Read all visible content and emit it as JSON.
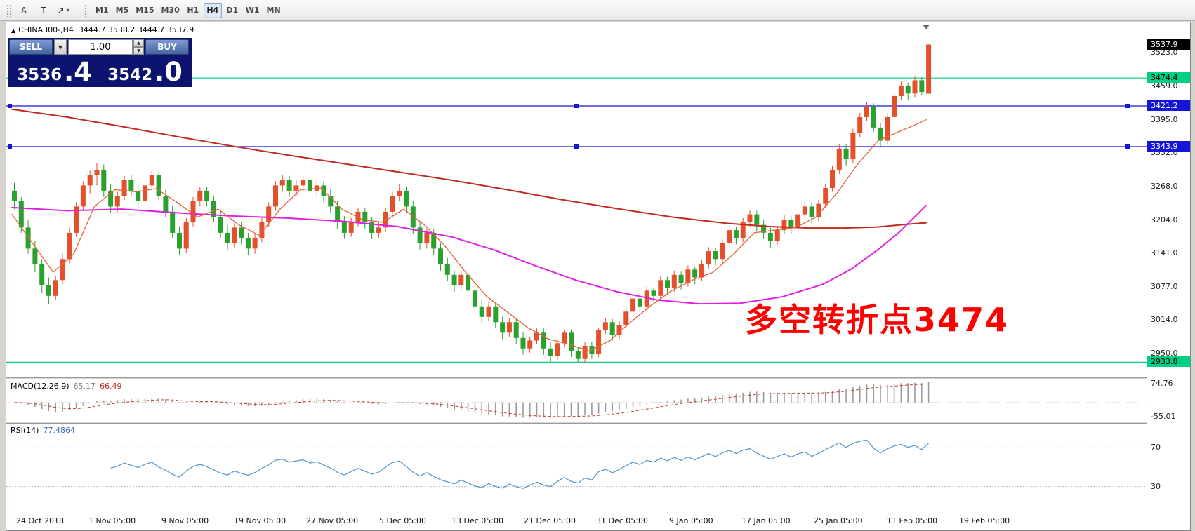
{
  "toolbar": {
    "tools": [
      {
        "glyph": "A",
        "name": "text-tool-button",
        "caret": false
      },
      {
        "glyph": "T",
        "name": "text-label-tool-button",
        "caret": false
      },
      {
        "glyph": "↗",
        "name": "arrow-styles-button",
        "caret": true
      }
    ],
    "timeframes": [
      {
        "label": "M1",
        "active": false
      },
      {
        "label": "M5",
        "active": false
      },
      {
        "label": "M15",
        "active": false
      },
      {
        "label": "M30",
        "active": false
      },
      {
        "label": "H1",
        "active": false
      },
      {
        "label": "H4",
        "active": true
      },
      {
        "label": "D1",
        "active": false
      },
      {
        "label": "W1",
        "active": false
      },
      {
        "label": "MN",
        "active": false
      }
    ]
  },
  "chart": {
    "title_symbol": "CHINA300-,H4",
    "title_ohlc": "3444.7 3538.2 3444.7 3537.9",
    "current_price": 3537.9,
    "current_price_label": "3537.9",
    "current_price_badge_bg": "#000000",
    "current_price_badge_fg": "#ffffff",
    "annotation": {
      "text": "多空转折点3474",
      "color": "#ff0000"
    },
    "trade_panel": {
      "sell_label": "SELL",
      "buy_label": "BUY",
      "volume": "1.00",
      "sell_price_main": "3536",
      "sell_price_big": ".4",
      "buy_price_main": "3542",
      "buy_price_big": ".0"
    }
  },
  "macd": {
    "name": "MACD(12,26,9)",
    "value1": "65.17",
    "value2": "66.49",
    "axis": [
      "74.76",
      "-55.01"
    ],
    "range": [
      -75,
      90
    ]
  },
  "rsi": {
    "name": "RSI(14)",
    "value": "77.4864",
    "axis": [
      "70",
      "30"
    ],
    "levels": [
      70,
      30
    ],
    "range": [
      5,
      95
    ]
  },
  "chart_data": {
    "type": "candlestick",
    "symbol": "CHINA300-",
    "timeframe": "H4",
    "title": "CHINA300-,H4",
    "price_range": [
      2905,
      3580
    ],
    "up_color": "#e4502c",
    "down_color": "#2aa12e",
    "y_ticks": [
      3523.0,
      3459.0,
      3395.0,
      3332.0,
      3268.0,
      3204.0,
      3141.0,
      3077.0,
      3014.0,
      2950.0
    ],
    "x_labels": [
      "24 Oct 2018",
      "1 Nov 05:00",
      "9 Nov 05:00",
      "19 Nov 05:00",
      "27 Nov 05:00",
      "5 Dec 05:00",
      "13 Dec 05:00",
      "21 Dec 05:00",
      "31 Dec 05:00",
      "9 Jan 05:00",
      "17 Jan 05:00",
      "25 Jan 05:00",
      "11 Feb 05:00",
      "19 Feb 05:00"
    ],
    "hlines": [
      {
        "price": 3474.4,
        "color": "#00d084",
        "handles": false,
        "label": "3474.4",
        "label_bg": "#00d084",
        "label_fg": "#000000"
      },
      {
        "price": 3421.2,
        "color": "#1515d8",
        "handles": true,
        "label": "3421.2",
        "label_bg": "#1515d8",
        "label_fg": "#ffffff"
      },
      {
        "price": 3343.9,
        "color": "#1515d8",
        "handles": true,
        "label": "3343.9",
        "label_bg": "#1515d8",
        "label_fg": "#ffffff"
      },
      {
        "price": 2933.8,
        "color": "#00d084",
        "handles": false,
        "label": "2933.8",
        "label_bg": "#00d084",
        "label_fg": "#000000"
      }
    ],
    "moving_averages": [
      {
        "name": "slow-ma",
        "color": "#c22a20",
        "width": 2,
        "points": [
          [
            0,
            3415
          ],
          [
            8,
            3400
          ],
          [
            16,
            3382
          ],
          [
            24,
            3363
          ],
          [
            32,
            3345
          ],
          [
            40,
            3328
          ],
          [
            48,
            3312
          ],
          [
            56,
            3296
          ],
          [
            64,
            3280
          ],
          [
            72,
            3262
          ],
          [
            80,
            3243
          ],
          [
            88,
            3226
          ],
          [
            96,
            3210
          ],
          [
            104,
            3198
          ],
          [
            110,
            3192
          ],
          [
            116,
            3189
          ],
          [
            121,
            3189
          ],
          [
            126,
            3191
          ],
          [
            130,
            3196
          ],
          [
            133,
            3199
          ]
        ]
      },
      {
        "name": "medium-ma",
        "color": "#e020e0",
        "width": 2,
        "points": [
          [
            0,
            3228
          ],
          [
            8,
            3222
          ],
          [
            16,
            3225
          ],
          [
            24,
            3218
          ],
          [
            32,
            3212
          ],
          [
            40,
            3208
          ],
          [
            48,
            3202
          ],
          [
            56,
            3192
          ],
          [
            64,
            3172
          ],
          [
            70,
            3148
          ],
          [
            76,
            3118
          ],
          [
            82,
            3090
          ],
          [
            88,
            3068
          ],
          [
            94,
            3052
          ],
          [
            100,
            3045
          ],
          [
            106,
            3046
          ],
          [
            112,
            3058
          ],
          [
            118,
            3082
          ],
          [
            122,
            3110
          ],
          [
            126,
            3148
          ],
          [
            129,
            3180
          ],
          [
            131,
            3206
          ],
          [
            133,
            3232
          ]
        ]
      },
      {
        "name": "fast-ma",
        "color": "#e8603c",
        "width": 1.3,
        "points": [
          [
            0,
            3215
          ],
          [
            3,
            3160
          ],
          [
            6,
            3105
          ],
          [
            9,
            3140
          ],
          [
            12,
            3230
          ],
          [
            15,
            3262
          ],
          [
            18,
            3258
          ],
          [
            21,
            3264
          ],
          [
            24,
            3238
          ],
          [
            27,
            3210
          ],
          [
            30,
            3225
          ],
          [
            33,
            3195
          ],
          [
            36,
            3175
          ],
          [
            39,
            3225
          ],
          [
            42,
            3262
          ],
          [
            45,
            3265
          ],
          [
            48,
            3225
          ],
          [
            51,
            3205
          ],
          [
            54,
            3200
          ],
          [
            57,
            3225
          ],
          [
            60,
            3195
          ],
          [
            63,
            3155
          ],
          [
            66,
            3105
          ],
          [
            69,
            3060
          ],
          [
            72,
            3030
          ],
          [
            75,
            3000
          ],
          [
            78,
            2978
          ],
          [
            81,
            2968
          ],
          [
            84,
            2955
          ],
          [
            87,
            2975
          ],
          [
            90,
            3010
          ],
          [
            93,
            3042
          ],
          [
            96,
            3070
          ],
          [
            99,
            3090
          ],
          [
            102,
            3105
          ],
          [
            105,
            3140
          ],
          [
            108,
            3180
          ],
          [
            111,
            3185
          ],
          [
            114,
            3190
          ],
          [
            117,
            3210
          ],
          [
            120,
            3255
          ],
          [
            123,
            3310
          ],
          [
            126,
            3355
          ],
          [
            129,
            3372
          ],
          [
            131,
            3383
          ],
          [
            133,
            3395
          ]
        ]
      }
    ],
    "ohlc": [
      [
        3260,
        3275,
        3225,
        3240
      ],
      [
        3240,
        3248,
        3180,
        3190
      ],
      [
        3190,
        3205,
        3140,
        3150
      ],
      [
        3150,
        3165,
        3105,
        3120
      ],
      [
        3120,
        3130,
        3065,
        3080
      ],
      [
        3080,
        3095,
        3045,
        3060
      ],
      [
        3060,
        3098,
        3052,
        3090
      ],
      [
        3090,
        3140,
        3082,
        3130
      ],
      [
        3130,
        3190,
        3122,
        3180
      ],
      [
        3180,
        3238,
        3172,
        3230
      ],
      [
        3230,
        3278,
        3222,
        3270
      ],
      [
        3270,
        3298,
        3255,
        3290
      ],
      [
        3290,
        3312,
        3270,
        3300
      ],
      [
        3300,
        3310,
        3248,
        3260
      ],
      [
        3260,
        3272,
        3218,
        3230
      ],
      [
        3230,
        3258,
        3220,
        3250
      ],
      [
        3250,
        3288,
        3242,
        3280
      ],
      [
        3280,
        3290,
        3250,
        3260
      ],
      [
        3260,
        3270,
        3228,
        3240
      ],
      [
        3240,
        3278,
        3232,
        3270
      ],
      [
        3270,
        3298,
        3260,
        3290
      ],
      [
        3290,
        3295,
        3242,
        3250
      ],
      [
        3250,
        3262,
        3210,
        3220
      ],
      [
        3220,
        3232,
        3170,
        3180
      ],
      [
        3180,
        3192,
        3138,
        3150
      ],
      [
        3150,
        3208,
        3142,
        3200
      ],
      [
        3200,
        3248,
        3192,
        3240
      ],
      [
        3240,
        3268,
        3230,
        3260
      ],
      [
        3260,
        3268,
        3230,
        3240
      ],
      [
        3240,
        3250,
        3200,
        3210
      ],
      [
        3210,
        3222,
        3170,
        3180
      ],
      [
        3180,
        3195,
        3148,
        3160
      ],
      [
        3160,
        3198,
        3152,
        3190
      ],
      [
        3190,
        3200,
        3158,
        3170
      ],
      [
        3170,
        3180,
        3138,
        3150
      ],
      [
        3150,
        3178,
        3140,
        3170
      ],
      [
        3170,
        3208,
        3162,
        3200
      ],
      [
        3200,
        3238,
        3192,
        3230
      ],
      [
        3230,
        3278,
        3222,
        3270
      ],
      [
        3270,
        3290,
        3258,
        3280
      ],
      [
        3280,
        3288,
        3248,
        3260
      ],
      [
        3260,
        3280,
        3250,
        3270
      ],
      [
        3270,
        3288,
        3258,
        3280
      ],
      [
        3280,
        3288,
        3248,
        3260
      ],
      [
        3260,
        3280,
        3250,
        3270
      ],
      [
        3270,
        3278,
        3238,
        3250
      ],
      [
        3250,
        3262,
        3218,
        3230
      ],
      [
        3230,
        3240,
        3188,
        3200
      ],
      [
        3200,
        3212,
        3168,
        3180
      ],
      [
        3180,
        3208,
        3172,
        3200
      ],
      [
        3200,
        3228,
        3192,
        3220
      ],
      [
        3220,
        3228,
        3188,
        3200
      ],
      [
        3200,
        3210,
        3168,
        3180
      ],
      [
        3180,
        3200,
        3170,
        3190
      ],
      [
        3190,
        3228,
        3182,
        3220
      ],
      [
        3220,
        3258,
        3212,
        3250
      ],
      [
        3250,
        3272,
        3240,
        3260
      ],
      [
        3260,
        3268,
        3218,
        3230
      ],
      [
        3230,
        3240,
        3178,
        3190
      ],
      [
        3190,
        3200,
        3148,
        3160
      ],
      [
        3160,
        3188,
        3150,
        3180
      ],
      [
        3180,
        3188,
        3138,
        3150
      ],
      [
        3150,
        3160,
        3108,
        3120
      ],
      [
        3120,
        3132,
        3088,
        3100
      ],
      [
        3100,
        3108,
        3068,
        3080
      ],
      [
        3080,
        3108,
        3070,
        3100
      ],
      [
        3100,
        3108,
        3058,
        3070
      ],
      [
        3070,
        3080,
        3028,
        3040
      ],
      [
        3040,
        3052,
        3008,
        3020
      ],
      [
        3020,
        3048,
        3012,
        3040
      ],
      [
        3040,
        3048,
        2998,
        3010
      ],
      [
        3010,
        3020,
        2978,
        2990
      ],
      [
        2990,
        3018,
        2982,
        3010
      ],
      [
        3010,
        3018,
        2968,
        2980
      ],
      [
        2980,
        2990,
        2948,
        2960
      ],
      [
        2960,
        2982,
        2952,
        2975
      ],
      [
        2975,
        2998,
        2968,
        2990
      ],
      [
        2990,
        2998,
        2948,
        2960
      ],
      [
        2960,
        2972,
        2934,
        2945
      ],
      [
        2945,
        2978,
        2938,
        2970
      ],
      [
        2970,
        2996,
        2962,
        2990
      ],
      [
        2990,
        2996,
        2944,
        2955
      ],
      [
        2955,
        2962,
        2934,
        2940
      ],
      [
        2940,
        2972,
        2933,
        2965
      ],
      [
        2965,
        2972,
        2940,
        2950
      ],
      [
        2950,
        3000,
        2944,
        2995
      ],
      [
        2995,
        3018,
        2988,
        3010
      ],
      [
        3010,
        3016,
        2975,
        2985
      ],
      [
        2985,
        3012,
        2978,
        3005
      ],
      [
        3005,
        3038,
        2998,
        3030
      ],
      [
        3030,
        3062,
        3022,
        3055
      ],
      [
        3055,
        3062,
        3030,
        3040
      ],
      [
        3040,
        3078,
        3032,
        3070
      ],
      [
        3070,
        3076,
        3048,
        3060
      ],
      [
        3060,
        3098,
        3052,
        3090
      ],
      [
        3090,
        3096,
        3062,
        3075
      ],
      [
        3075,
        3108,
        3068,
        3100
      ],
      [
        3100,
        3106,
        3072,
        3085
      ],
      [
        3085,
        3118,
        3078,
        3110
      ],
      [
        3110,
        3116,
        3082,
        3095
      ],
      [
        3095,
        3128,
        3088,
        3120
      ],
      [
        3120,
        3153,
        3112,
        3145
      ],
      [
        3145,
        3152,
        3118,
        3130
      ],
      [
        3130,
        3168,
        3122,
        3160
      ],
      [
        3160,
        3193,
        3152,
        3185
      ],
      [
        3185,
        3192,
        3158,
        3170
      ],
      [
        3170,
        3208,
        3162,
        3200
      ],
      [
        3200,
        3223,
        3192,
        3215
      ],
      [
        3215,
        3222,
        3182,
        3195
      ],
      [
        3195,
        3205,
        3168,
        3180
      ],
      [
        3180,
        3190,
        3152,
        3165
      ],
      [
        3165,
        3193,
        3158,
        3185
      ],
      [
        3185,
        3213,
        3178,
        3205
      ],
      [
        3205,
        3212,
        3178,
        3190
      ],
      [
        3190,
        3223,
        3182,
        3215
      ],
      [
        3215,
        3238,
        3208,
        3230
      ],
      [
        3230,
        3238,
        3198,
        3210
      ],
      [
        3210,
        3243,
        3202,
        3235
      ],
      [
        3235,
        3273,
        3228,
        3265
      ],
      [
        3265,
        3308,
        3258,
        3300
      ],
      [
        3300,
        3348,
        3292,
        3340
      ],
      [
        3340,
        3348,
        3308,
        3320
      ],
      [
        3320,
        3378,
        3312,
        3370
      ],
      [
        3370,
        3408,
        3362,
        3400
      ],
      [
        3400,
        3428,
        3392,
        3420
      ],
      [
        3420,
        3426,
        3372,
        3380
      ],
      [
        3380,
        3388,
        3342,
        3355
      ],
      [
        3355,
        3408,
        3348,
        3400
      ],
      [
        3400,
        3448,
        3392,
        3440
      ],
      [
        3440,
        3468,
        3432,
        3460
      ],
      [
        3460,
        3466,
        3432,
        3445
      ],
      [
        3445,
        3478,
        3438,
        3470
      ],
      [
        3470,
        3476,
        3442,
        3448
      ],
      [
        3444.7,
        3538.2,
        3444.7,
        3537.9
      ]
    ]
  }
}
